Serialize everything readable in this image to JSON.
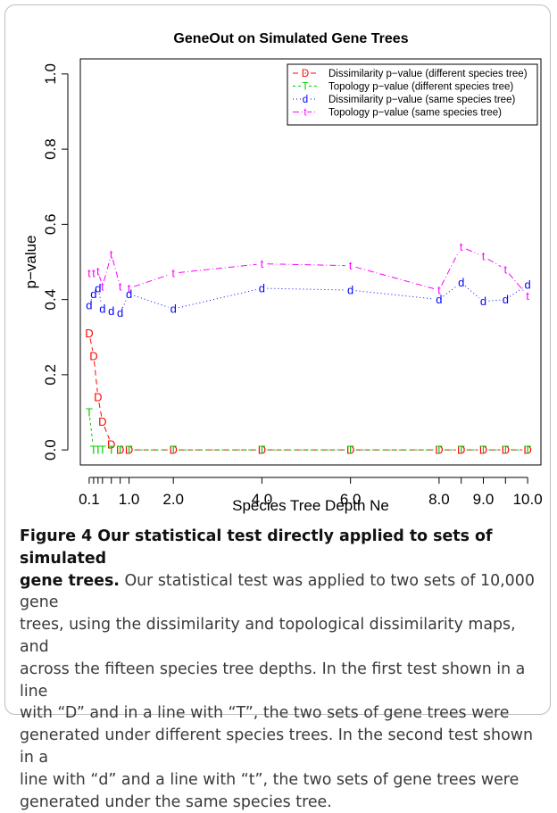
{
  "chart_data": {
    "type": "line",
    "title": "GeneOut on Simulated Gene Trees",
    "xlabel": "Species Tree Depth Ne",
    "ylabel": "p−value",
    "xlim": [
      -0.1,
      10.3
    ],
    "ylim": [
      -0.04,
      1.04
    ],
    "x_ticks": [
      0.1,
      1.0,
      2.0,
      4.0,
      6.0,
      8.0,
      9.0,
      10.0
    ],
    "x_tick_labels": [
      "0.1",
      "1.0",
      "2.0",
      "4.0",
      "6.0",
      "8.0",
      "9.0",
      "10.0"
    ],
    "y_ticks": [
      0.0,
      0.2,
      0.4,
      0.6,
      0.8,
      1.0
    ],
    "y_tick_labels": [
      "0.0",
      "0.2",
      "0.4",
      "0.6",
      "0.8",
      "1.0"
    ],
    "grid": false,
    "legend_position": "top-right",
    "x": [
      0.1,
      0.2,
      0.3,
      0.4,
      0.6,
      0.8,
      1.0,
      2.0,
      4.0,
      6.0,
      8.0,
      8.5,
      9.0,
      9.5,
      10.0
    ],
    "series": [
      {
        "name": "Dissimilarity p−value (different species tree)",
        "marker": "D",
        "color": "#ff0000",
        "dash": "6,4",
        "values": [
          0.31,
          0.25,
          0.14,
          0.075,
          0.015,
          0.0,
          0.0,
          0.0,
          0.0,
          0.0,
          0.0,
          0.0,
          0.0,
          0.0,
          0.0
        ]
      },
      {
        "name": "Topology p−value (different species tree)",
        "marker": "T",
        "color": "#00cc00",
        "dash": "3,3",
        "values": [
          0.1,
          0.0,
          0.0,
          0.0,
          0.0,
          0.0,
          0.0,
          0.0,
          0.0,
          0.0,
          0.0,
          0.0,
          0.0,
          0.0,
          0.0
        ]
      },
      {
        "name": "Dissimilarity p−value (same species tree)",
        "marker": "d",
        "color": "#0000ff",
        "dash": "1,3",
        "values": [
          0.385,
          0.415,
          0.43,
          0.375,
          0.37,
          0.365,
          0.415,
          0.375,
          0.43,
          0.425,
          0.4,
          0.445,
          0.395,
          0.4,
          0.44
        ]
      },
      {
        "name": "Topology p−value (same species tree)",
        "marker": "t",
        "color": "#ff00ff",
        "dash": "7,3,1,3",
        "values": [
          0.47,
          0.47,
          0.475,
          0.435,
          0.52,
          0.435,
          0.43,
          0.47,
          0.495,
          0.49,
          0.425,
          0.54,
          0.515,
          0.48,
          0.41
        ]
      }
    ]
  },
  "caption": {
    "title": "Figure 4 Our statistical test directly applied to sets of simulated gene trees.",
    "lines": [
      "Our statistical test was applied to two sets of 10,000 gene",
      "trees, using the dissimilarity and topological dissimilarity maps, and",
      "across the fifteen species tree depths. In the first test shown in a line",
      "with “D” and in a line with “T”, the two sets of gene trees were",
      "generated under different species trees. In the second test shown in a",
      "line with “d” and a line with “t”, the two sets of gene trees were",
      "generated under the same species tree."
    ]
  }
}
